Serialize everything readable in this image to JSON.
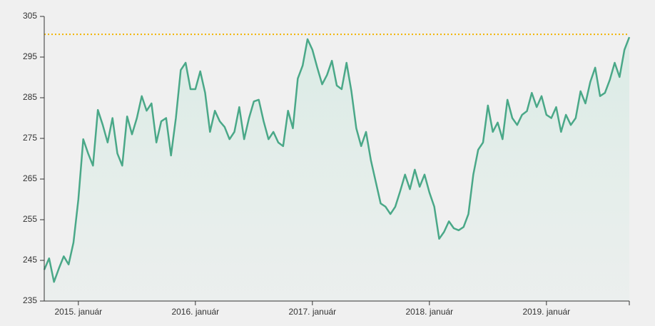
{
  "chart_data": {
    "type": "line",
    "categories": [
      null,
      null,
      null,
      null,
      null,
      null,
      null,
      "2015. január",
      null,
      null,
      null,
      null,
      null,
      null,
      null,
      null,
      null,
      null,
      null,
      null,
      null,
      null,
      null,
      null,
      null,
      null,
      null,
      null,
      null,
      null,
      null,
      "2016. január",
      null,
      null,
      null,
      null,
      null,
      null,
      null,
      null,
      null,
      null,
      null,
      null,
      null,
      null,
      null,
      null,
      null,
      null,
      null,
      null,
      null,
      null,
      null,
      "2017. január",
      null,
      null,
      null,
      null,
      null,
      null,
      null,
      null,
      null,
      null,
      null,
      null,
      null,
      null,
      null,
      null,
      null,
      null,
      null,
      null,
      null,
      null,
      null,
      "2018. január",
      null,
      null,
      null,
      null,
      null,
      null,
      null,
      null,
      null,
      null,
      null,
      null,
      null,
      null,
      null,
      null,
      null,
      null,
      null,
      null,
      null,
      null,
      null,
      "2019. január",
      null,
      null,
      null,
      null,
      null,
      null,
      null,
      null,
      null,
      null,
      null,
      null,
      null,
      null,
      null,
      null,
      null
    ],
    "values": [
      242.7,
      245.5,
      239.7,
      243,
      246,
      244,
      249.4,
      260,
      274.8,
      271.3,
      268.3,
      282,
      278.3,
      274,
      280,
      271.3,
      268.3,
      280.4,
      276,
      280,
      285.4,
      281.8,
      283.6,
      274,
      279.2,
      280,
      270.8,
      280,
      291.8,
      293.6,
      287.1,
      287.1,
      291.5,
      286.2,
      276.6,
      281.8,
      279.2,
      277.8,
      274.8,
      276.6,
      282.7,
      274.8,
      280,
      284.1,
      284.5,
      279.2,
      274.8,
      276.6,
      274,
      273.1,
      281.8,
      277.5,
      289.7,
      292.9,
      299.4,
      296.8,
      292.4,
      288.3,
      290.6,
      294.1,
      288,
      287.1,
      293.6,
      286.6,
      277.5,
      273.1,
      276.6,
      269.6,
      264.3,
      259,
      258.2,
      256.4,
      258.2,
      262,
      266.1,
      262.5,
      267.3,
      263.1,
      266.1,
      261.7,
      258.2,
      250.3,
      252,
      254.6,
      252.9,
      252.4,
      253.2,
      256.4,
      266.1,
      272.2,
      274,
      283.1,
      276.6,
      278.9,
      274.8,
      284.5,
      280,
      278.3,
      280.8,
      281.7,
      286.2,
      282.7,
      285.4,
      280.8,
      280,
      282.7,
      276.6,
      280.8,
      278.3,
      280,
      286.6,
      283.6,
      288.9,
      292.4,
      285.4,
      286.2,
      289.4,
      293.6,
      290.1,
      296.8,
      299.9
    ],
    "color": "#4aa888",
    "reference_line": 300.6,
    "reference_color": "#f2b400",
    "ylim": [
      235,
      305
    ],
    "yticks": [
      235,
      245,
      255,
      265,
      275,
      285,
      295,
      305
    ]
  }
}
